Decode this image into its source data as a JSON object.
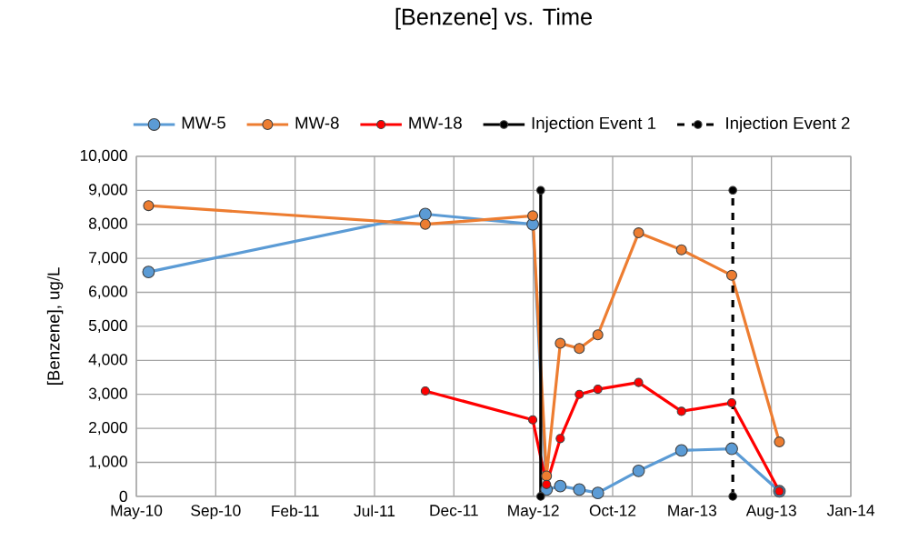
{
  "chart_data": {
    "type": "line",
    "title": "[Benzene] vs. Time",
    "ylabel": "[Benzene], ug/L",
    "xlim": [
      "2010-05-01",
      "2014-01-10"
    ],
    "xticks": [
      {
        "value": "2010-05-01",
        "label": "May-10"
      },
      {
        "value": "2010-09-28",
        "label": "Sep-10"
      },
      {
        "value": "2011-02-25",
        "label": "Feb-11"
      },
      {
        "value": "2011-07-25",
        "label": "Jul-11"
      },
      {
        "value": "2011-12-22",
        "label": "Dec-11"
      },
      {
        "value": "2012-05-20",
        "label": "May-12"
      },
      {
        "value": "2012-10-17",
        "label": "Oct-12"
      },
      {
        "value": "2013-03-16",
        "label": "Mar-13"
      },
      {
        "value": "2013-08-13",
        "label": "Aug-13"
      },
      {
        "value": "2014-01-10",
        "label": "Jan-14"
      }
    ],
    "ylim": [
      0,
      10000
    ],
    "yticks": [
      0,
      {
        "value": 1000,
        "label": "1,000"
      },
      {
        "value": 2000,
        "label": "2,000"
      },
      {
        "value": 3000,
        "label": "3,000"
      },
      {
        "value": 4000,
        "label": "4,000"
      },
      {
        "value": 5000,
        "label": "5,000"
      },
      {
        "value": 6000,
        "label": "6,000"
      },
      {
        "value": 7000,
        "label": "7,000"
      },
      {
        "value": 8000,
        "label": "8,000"
      },
      {
        "value": 9000,
        "label": "9,000"
      },
      {
        "value": 10000,
        "label": "10,000"
      }
    ],
    "grid": true,
    "legend": "top",
    "marker": "circle",
    "series": [
      {
        "name": "MW-5",
        "color": "#5b9bd5",
        "x": [
          "2010-05-24",
          "2011-10-29",
          "2012-05-19",
          "2012-06-14",
          "2012-07-10",
          "2012-08-15",
          "2012-09-19",
          "2012-12-05",
          "2013-02-24",
          "2013-05-30",
          "2013-08-28"
        ],
        "values": [
          6600,
          8300,
          8000,
          200,
          300,
          200,
          100,
          750,
          1350,
          1400,
          150
        ]
      },
      {
        "name": "MW-8",
        "color": "#ed7d31",
        "x": [
          "2010-05-24",
          "2011-10-29",
          "2012-05-19",
          "2012-06-14",
          "2012-07-10",
          "2012-08-15",
          "2012-09-19",
          "2012-12-05",
          "2013-02-24",
          "2013-05-30",
          "2013-08-28"
        ],
        "values": [
          8550,
          8000,
          8250,
          600,
          4500,
          4350,
          4750,
          7750,
          7250,
          6500,
          1600
        ]
      },
      {
        "name": "MW-18",
        "color": "#ff0000",
        "x": [
          "2011-10-29",
          "2012-05-19",
          "2012-06-14",
          "2012-07-10",
          "2012-08-15",
          "2012-09-19",
          "2012-12-05",
          "2013-02-24",
          "2013-05-30",
          "2013-08-28"
        ],
        "values": [
          3100,
          2250,
          350,
          1700,
          3000,
          3150,
          3350,
          2500,
          2750,
          150
        ]
      },
      {
        "name": "Injection Event 1",
        "color": "#000000",
        "x": [
          "2012-06-03",
          "2012-06-03"
        ],
        "values": [
          0,
          9000
        ]
      },
      {
        "name": "Injection Event 2",
        "color": "#000000",
        "line_style": "dashed",
        "x": [
          "2013-06-01",
          "2013-06-01"
        ],
        "values": [
          0,
          9000
        ]
      }
    ]
  }
}
